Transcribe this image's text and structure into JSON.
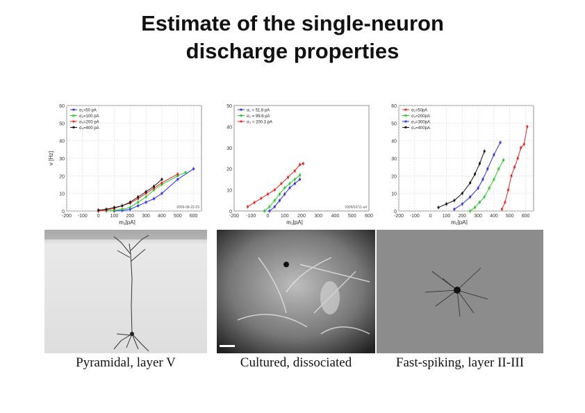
{
  "title": {
    "line1": "Estimate of the single-neuron",
    "line2": "discharge properties"
  },
  "colors": {
    "blue": "#2a2aff",
    "green": "#22cc22",
    "red": "#ee2222",
    "black": "#111111"
  },
  "chart_data": [
    {
      "type": "line",
      "id": "pyramidal",
      "xlim": [
        -200,
        650
      ],
      "ylim": [
        0,
        60
      ],
      "xticks": [
        -200,
        -100,
        0,
        100,
        200,
        300,
        400,
        500,
        600
      ],
      "yticks": [
        0,
        10,
        20,
        30,
        40,
        50,
        60
      ],
      "xlabel": "m₁[pA]",
      "ylabel": "ν [Hz]",
      "annotation": "2009-08-22-23",
      "grid": true,
      "legend": "top-left",
      "series": [
        {
          "name": "σ₁=50 pA",
          "color": "#2a2aff",
          "x": [
            100,
            150,
            200,
            250,
            300,
            350,
            400,
            500,
            600
          ],
          "y": [
            0,
            0.3,
            1,
            3,
            5,
            7,
            10,
            18,
            24
          ]
        },
        {
          "name": "σ₂=100 pA",
          "color": "#22cc22",
          "x": [
            50,
            100,
            150,
            200,
            250,
            300,
            350,
            400,
            500,
            550
          ],
          "y": [
            0,
            0.5,
            1,
            2,
            5,
            8,
            12,
            15,
            20,
            22
          ]
        },
        {
          "name": "σ₃=200 pA",
          "color": "#ee2222",
          "x": [
            0,
            50,
            100,
            150,
            200,
            250,
            300,
            350,
            400,
            500
          ],
          "y": [
            0,
            0.6,
            1.5,
            3,
            4.5,
            7,
            10,
            13,
            16,
            21
          ]
        },
        {
          "name": "σ₄=400 pA",
          "color": "#111111",
          "x": [
            0,
            50,
            100,
            150,
            200,
            250,
            300,
            350,
            400
          ],
          "y": [
            0.5,
            1,
            2,
            3,
            5,
            8,
            11,
            14,
            18
          ]
        }
      ]
    },
    {
      "type": "line",
      "id": "cultured",
      "xlim": [
        -200,
        600
      ],
      "ylim": [
        0,
        50
      ],
      "xticks": [
        -200,
        -100,
        0,
        100,
        200,
        300,
        400,
        500,
        600
      ],
      "yticks": [
        0,
        10,
        20,
        30,
        40,
        50
      ],
      "xlabel": "m₁[pA]",
      "ylabel": "",
      "annotation": "2009/02/11-a4",
      "grid": false,
      "legend": "top-left",
      "series": [
        {
          "name": "σ₁ = 51.8 pA",
          "color": "#2a2aff",
          "x": [
            10,
            40,
            70,
            100,
            130,
            160,
            190
          ],
          "y": [
            0,
            2,
            5,
            8,
            11,
            13,
            15
          ]
        },
        {
          "name": "σ₂ = 99.6 pA",
          "color": "#22cc22",
          "x": [
            -20,
            10,
            40,
            70,
            100,
            130,
            160,
            190
          ],
          "y": [
            0,
            2,
            5,
            8,
            11,
            13,
            15,
            17
          ]
        },
        {
          "name": "σ₃ = 200.3 pA",
          "color": "#ee2222",
          "x": [
            -120,
            -80,
            -40,
            0,
            40,
            80,
            120,
            160,
            190,
            210
          ],
          "y": [
            2,
            4,
            6,
            8,
            10,
            13,
            16,
            19,
            22,
            22.5
          ]
        }
      ]
    },
    {
      "type": "line",
      "id": "fast-spiking",
      "xlim": [
        -200,
        650
      ],
      "ylim": [
        0,
        60
      ],
      "xticks": [
        -200,
        -100,
        0,
        100,
        200,
        300,
        400,
        500,
        600
      ],
      "yticks": [
        0,
        10,
        20,
        30,
        40,
        50,
        60
      ],
      "xlabel": "m₁[pA]",
      "ylabel": "",
      "annotation": "",
      "grid": true,
      "legend": "top-left",
      "series": [
        {
          "name": "σ₁=50pA",
          "color": "#ee2222",
          "x": [
            450,
            470,
            490,
            510,
            530,
            550,
            570,
            590,
            610
          ],
          "y": [
            1,
            5,
            12,
            20,
            25,
            30,
            36,
            38,
            48
          ]
        },
        {
          "name": "σ₂=200pA",
          "color": "#22cc22",
          "x": [
            250,
            280,
            310,
            340,
            370,
            400,
            430,
            460
          ],
          "y": [
            0,
            2,
            5,
            8,
            13,
            18,
            24,
            29
          ]
        },
        {
          "name": "σ₃=300pA",
          "color": "#2a2aff",
          "x": [
            150,
            200,
            250,
            300,
            330,
            360,
            400,
            440
          ],
          "y": [
            1,
            4,
            8,
            13,
            18,
            24,
            32,
            39
          ]
        },
        {
          "name": "σ₄=400pA",
          "color": "#111111",
          "x": [
            50,
            100,
            150,
            200,
            250,
            280,
            310,
            340
          ],
          "y": [
            2,
            4,
            6,
            10,
            16,
            21,
            27,
            34
          ]
        }
      ]
    }
  ],
  "captions": {
    "pyramidal": "Pyramidal, layer V",
    "cultured": "Cultured, dissociated",
    "fast_spiking": "Fast-spiking, layer II-III"
  }
}
